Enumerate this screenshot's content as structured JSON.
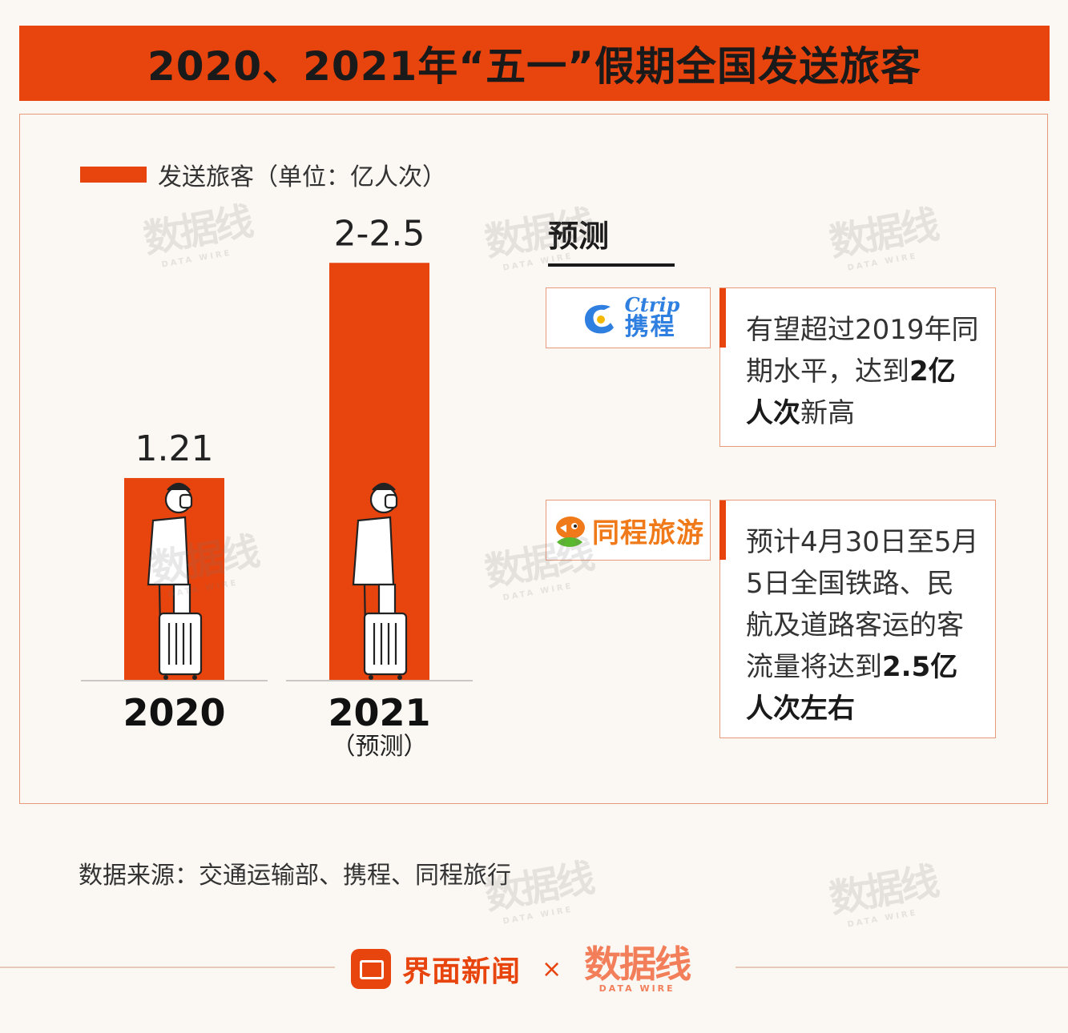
{
  "title": "2020、2021年“五一”假期全国发送旅客",
  "legend": {
    "label": "发送旅客（单位：亿人次）"
  },
  "chart_data": {
    "type": "bar",
    "title": "2020、2021年“五一”假期全国发送旅客",
    "ylabel": "发送旅客（单位：亿人次）",
    "categories": [
      "2020",
      "2021"
    ],
    "category_notes": [
      "",
      "（预测）"
    ],
    "values": [
      1.21,
      2.5
    ],
    "value_labels": [
      "1.21",
      "2-2.5"
    ],
    "range_low": [
      null,
      2.0
    ],
    "color": "#e8440e",
    "ylim": [
      0,
      2.6
    ],
    "grid": false
  },
  "forecast": {
    "heading": "预测",
    "ctrip": {
      "logo_en": "Ctrip",
      "logo_cn": "携程",
      "text_parts": [
        "有望超过2019年同期水平，达到",
        "2亿人次",
        "新高"
      ]
    },
    "tongcheng": {
      "logo_cn": "同程旅游",
      "text_parts": [
        "预计4月30日至5月5日全国铁路、民航及道路客运的客流量将达到",
        "2.5亿人次左右"
      ]
    }
  },
  "source": "数据来源：交通运输部、携程、同程旅行",
  "footer": {
    "brand": "界面新闻",
    "times": "×",
    "datawire_cn": "数据线",
    "datawire_en": "DATA WIRE"
  },
  "watermark": {
    "cn": "数据线",
    "en": "DATA WIRE"
  }
}
